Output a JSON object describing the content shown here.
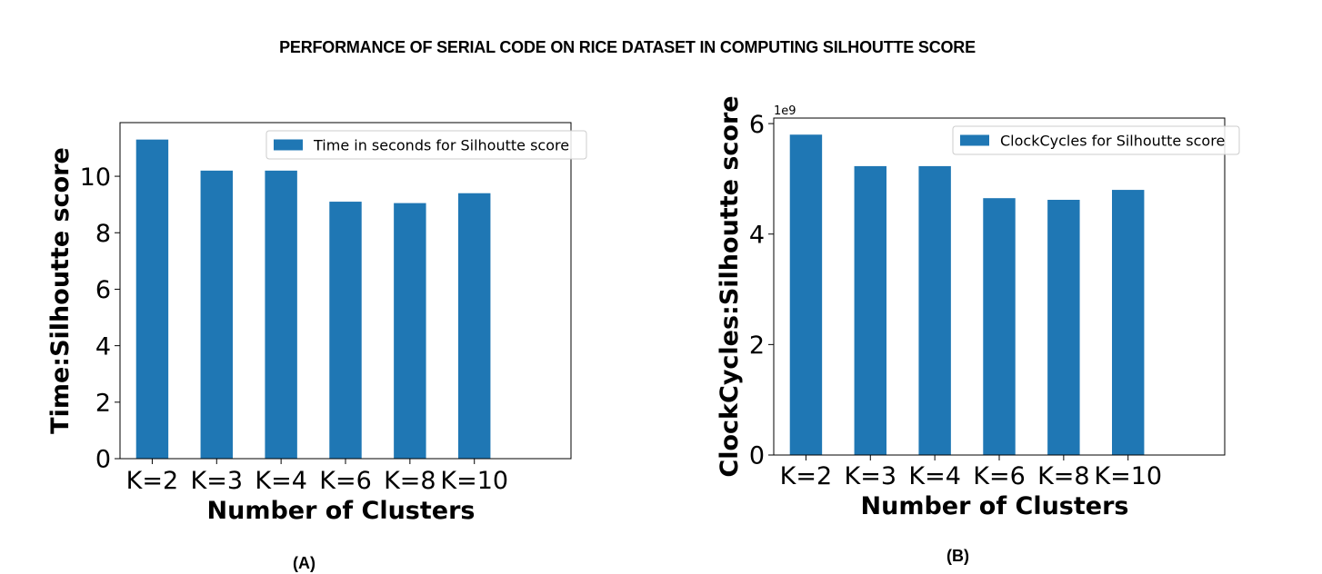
{
  "page": {
    "title": "PERFORMANCE OF SERIAL CODE ON RICE DATASET IN COMPUTING SILHOUTTE SCORE"
  },
  "chart_data": [
    {
      "caption": "(A)",
      "type": "bar",
      "categories": [
        "K=2",
        "K=3",
        "K=4",
        "K=6",
        "K=8",
        "K=10"
      ],
      "series": [
        {
          "name": "Time in seconds for Silhoutte score",
          "values": [
            11.3,
            10.2,
            10.2,
            9.1,
            9.05,
            9.4
          ],
          "color": "#1f77b4"
        }
      ],
      "xlabel": "Number of Clusters",
      "ylabel": "Time:Silhoutte score",
      "ylim": [
        0,
        11.9
      ],
      "yticks": [
        0,
        2,
        4,
        6,
        8,
        10
      ],
      "ytick_labels": [
        "0",
        "2",
        "4",
        "6",
        "8",
        "10"
      ],
      "xlim": [
        -0.5,
        6.5
      ],
      "offset_label": "",
      "grid": false,
      "legend": "top-right"
    },
    {
      "caption": "(B)",
      "type": "bar",
      "categories": [
        "K=2",
        "K=3",
        "K=4",
        "K=6",
        "K=8",
        "K=10"
      ],
      "series": [
        {
          "name": "ClockCycles for Silhoutte score",
          "values": [
            5.8,
            5.23,
            5.23,
            4.65,
            4.62,
            4.8
          ],
          "color": "#1f77b4"
        }
      ],
      "xlabel": "Number of Clusters",
      "ylabel": "ClockCycles:Silhoutte score",
      "ylim": [
        0,
        6.1
      ],
      "yticks": [
        0,
        2,
        4,
        6
      ],
      "ytick_labels": [
        "0",
        "2",
        "4",
        "6"
      ],
      "xlim": [
        -0.5,
        6.5
      ],
      "offset_label": "1e9",
      "grid": false,
      "legend": "top-right"
    }
  ]
}
